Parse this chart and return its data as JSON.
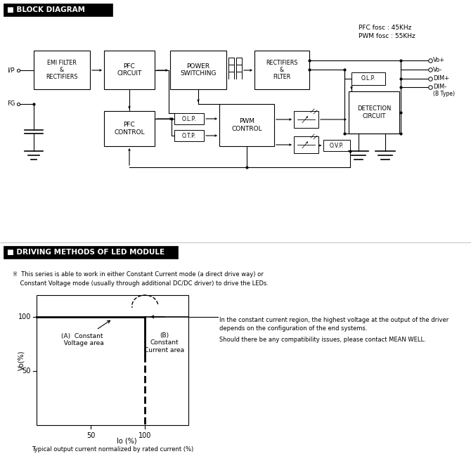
{
  "bg_color": "#ffffff",
  "section1_title": "■ BLOCK DIAGRAM",
  "section2_title": "■ DRIVING METHODS OF LED MODULE",
  "pfc_fosc": "PFC fosc : 45KHz",
  "pwm_fosc": "PWM fosc : 55KHz",
  "note_text": "※  This series is able to work in either Constant Current mode (a direct drive way) or\n    Constant Voltage mode (usually through additional DC/DC driver) to drive the LEDs.",
  "right_text_line1": "In the constant current region, the highest voltage at the output of the driver",
  "right_text_line2": "depends on the configuration of the end systems.",
  "right_text_line3": "Should there be any compatibility issues, please contact MEAN WELL.",
  "xlabel": "Io (%)",
  "ylabel": "Vo(%)",
  "caption": "Typical output current normalized by rated current (%)",
  "label_A": "(A)  Constant\n  Voltage area",
  "label_B": "(B)\nConstant\nCurrent area",
  "xticks": [
    50,
    100
  ],
  "yticks": [
    50,
    100
  ],
  "xlim": [
    0,
    140
  ],
  "ylim": [
    0,
    120
  ]
}
